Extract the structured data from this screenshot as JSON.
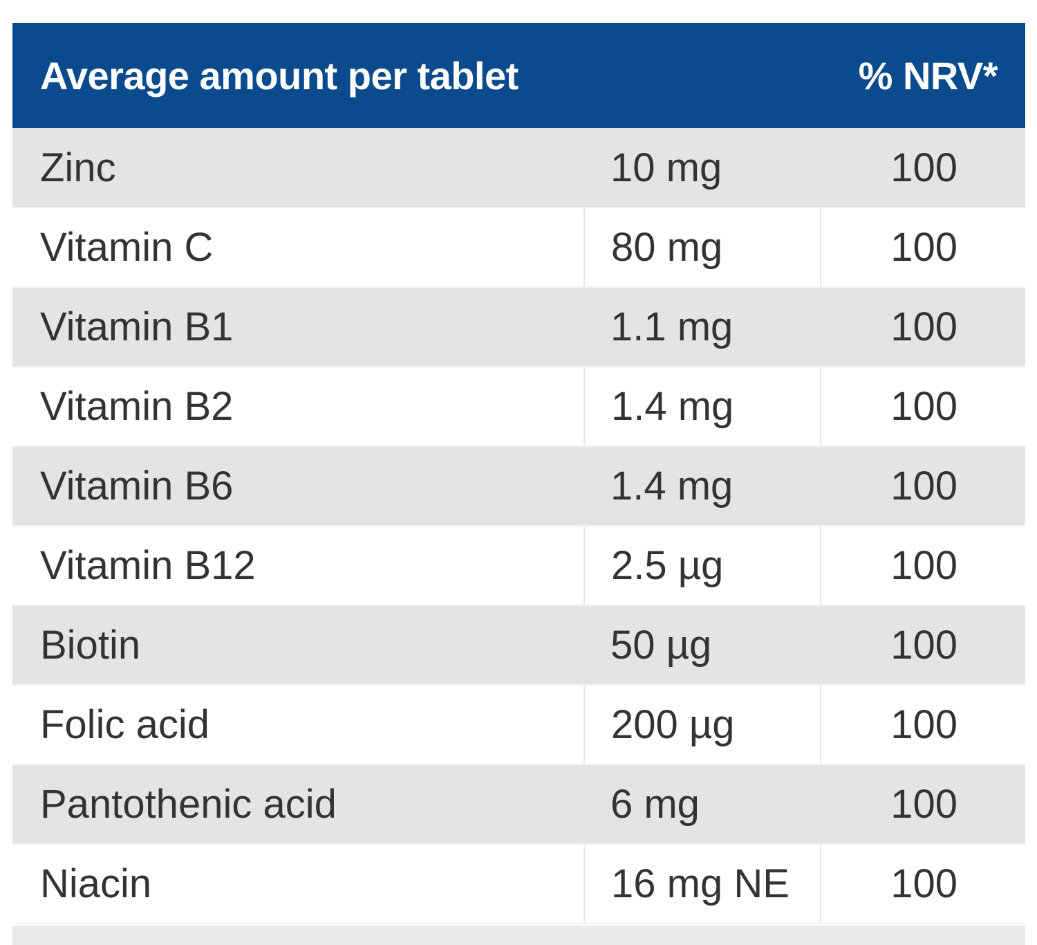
{
  "table": {
    "headers": {
      "nutrient": "Average amount per tablet",
      "amount": "",
      "nrv": "% NRV*"
    },
    "rows": [
      {
        "nutrient": "Zinc",
        "amount": "10 mg",
        "nrv": "100"
      },
      {
        "nutrient": "Vitamin C",
        "amount": "80 mg",
        "nrv": "100"
      },
      {
        "nutrient": "Vitamin B1",
        "amount": "1.1 mg",
        "nrv": "100"
      },
      {
        "nutrient": "Vitamin B2",
        "amount": "1.4 mg",
        "nrv": "100"
      },
      {
        "nutrient": "Vitamin B6",
        "amount": "1.4 mg",
        "nrv": "100"
      },
      {
        "nutrient": "Vitamin B12",
        "amount": "2.5 µg",
        "nrv": "100"
      },
      {
        "nutrient": "Biotin",
        "amount": "50 µg",
        "nrv": "100"
      },
      {
        "nutrient": "Folic acid",
        "amount": "200 µg",
        "nrv": "100"
      },
      {
        "nutrient": "Pantothenic acid",
        "amount": "6 mg",
        "nrv": "100"
      },
      {
        "nutrient": "Niacin",
        "amount": "16 mg NE",
        "nrv": "100"
      }
    ]
  },
  "colors": {
    "header_bg": "#0a4a8d",
    "header_text": "#ffffff",
    "row_shaded": "#e4e4e4",
    "row_plain": "#ffffff",
    "cell_text": "#333333"
  }
}
